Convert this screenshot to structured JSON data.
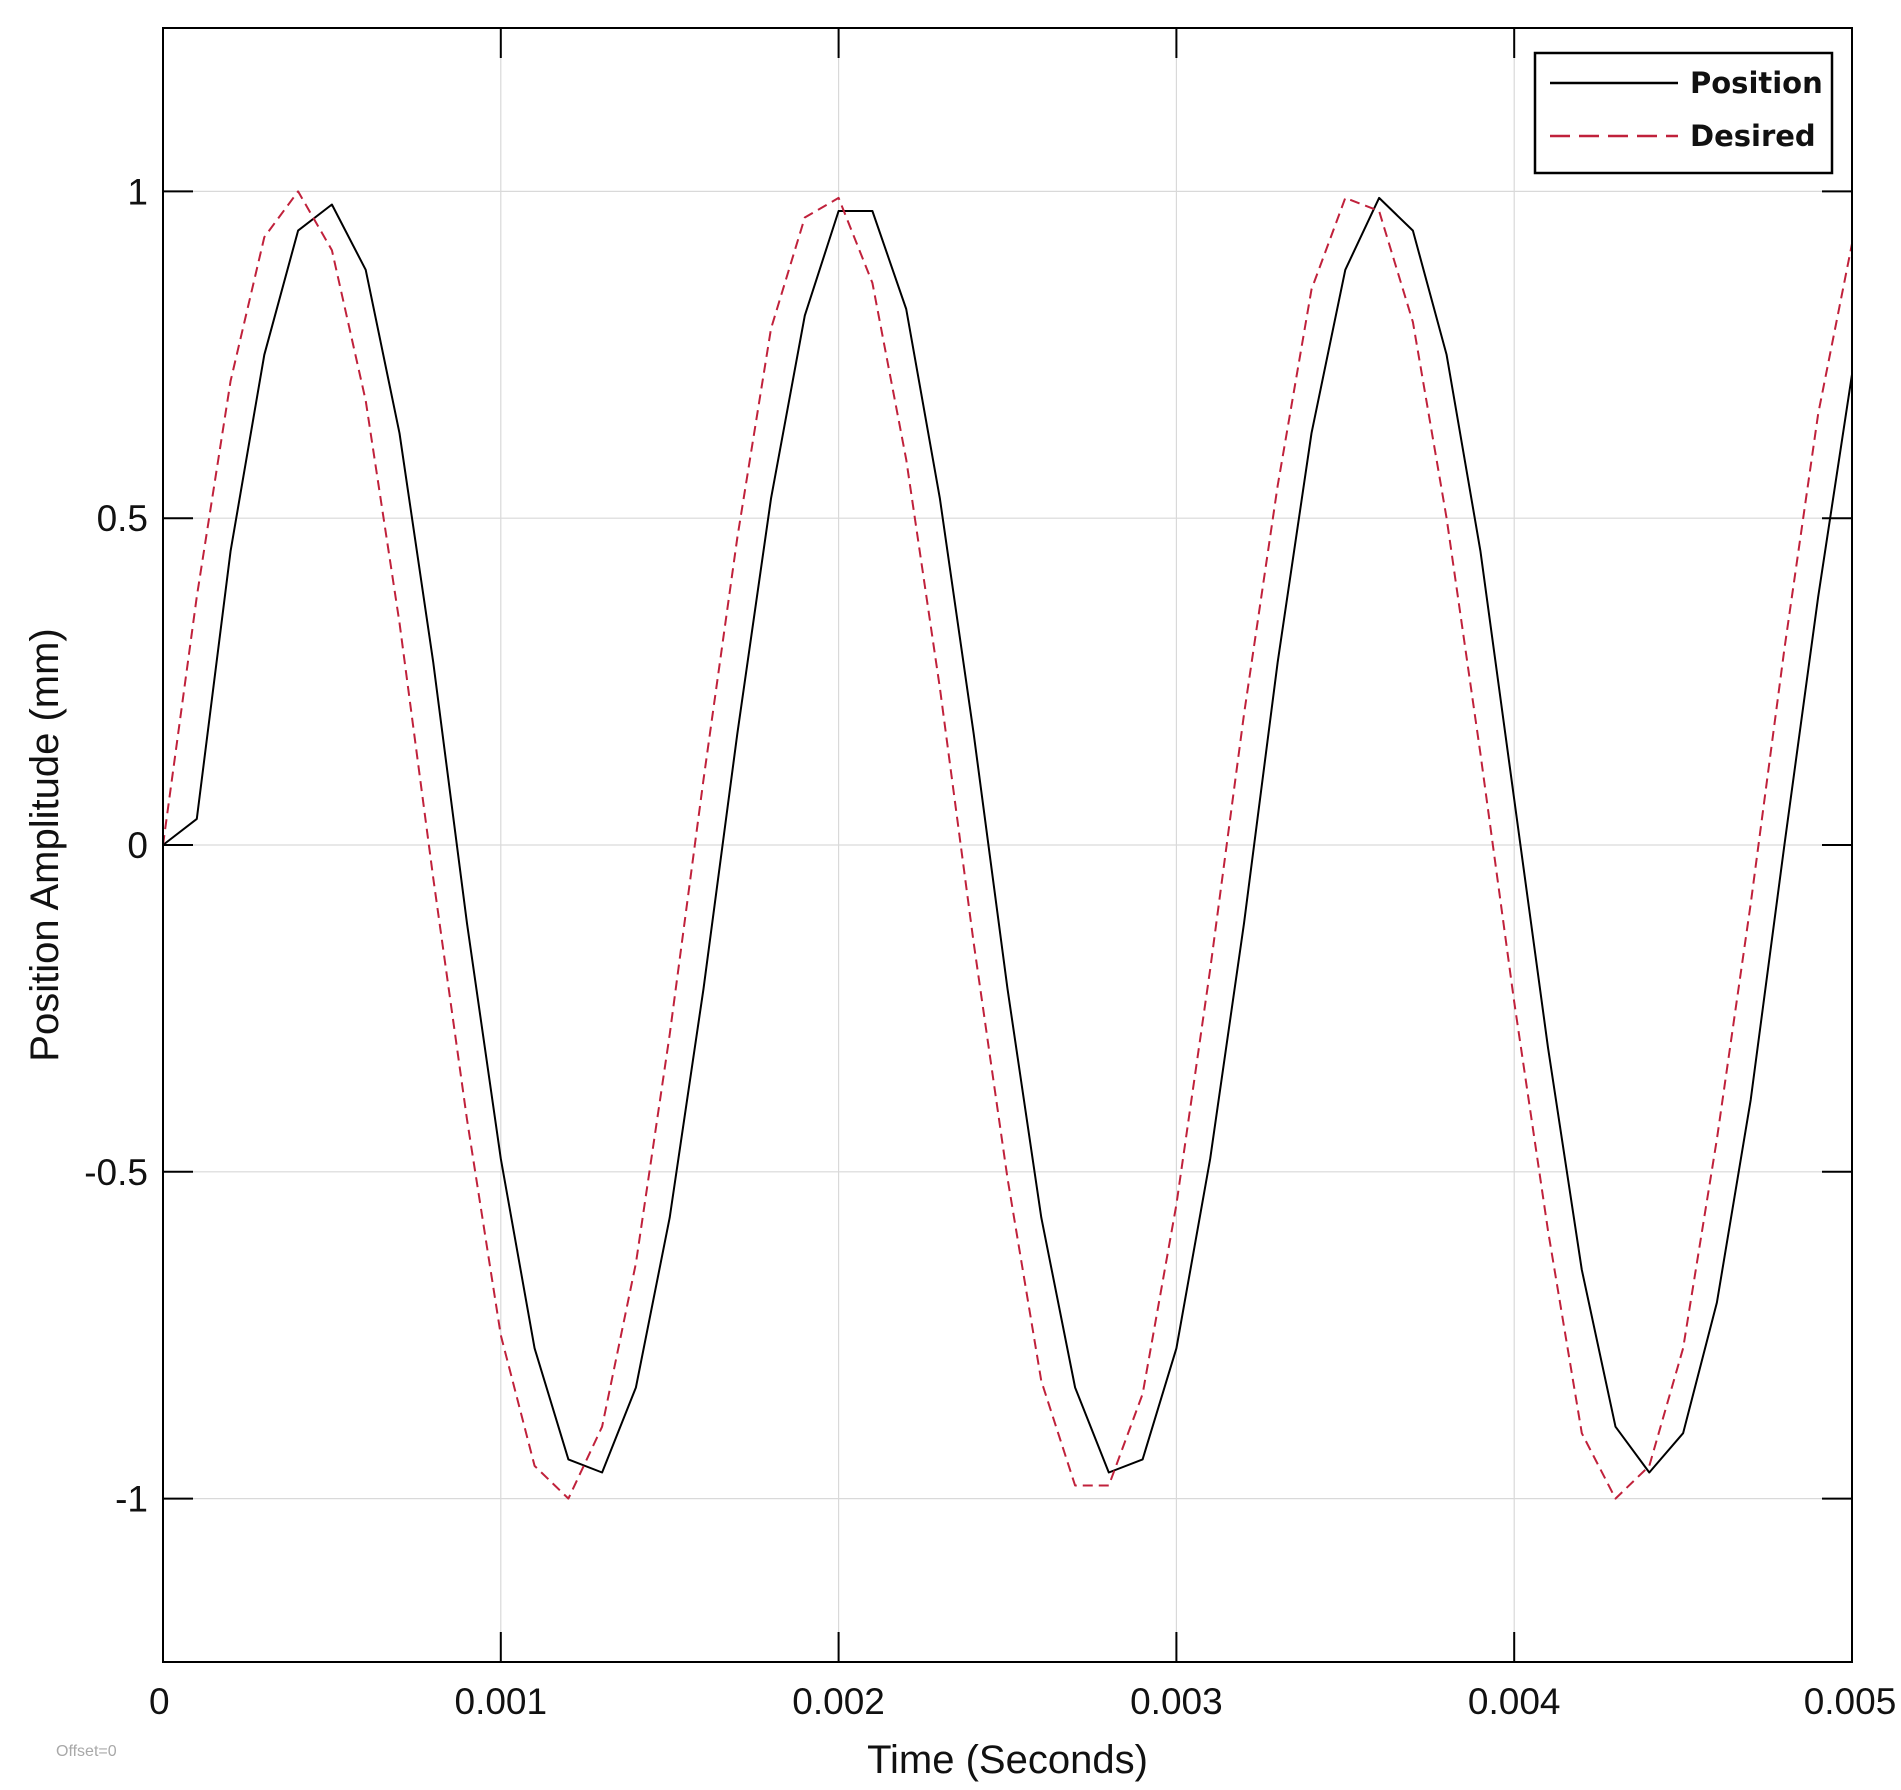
{
  "chart_data": {
    "type": "line",
    "title": "",
    "xlabel": "Time (Seconds)",
    "ylabel": "Position Amplitude (mm)",
    "xlim": [
      0,
      0.005
    ],
    "ylim": [
      -1.25,
      1.25
    ],
    "x_ticks": [
      0,
      0.001,
      0.002,
      0.003,
      0.004,
      0.005
    ],
    "x_tick_labels": [
      "0",
      "0.001",
      "0.002",
      "0.003",
      "0.004",
      "0.005"
    ],
    "y_ticks": [
      1,
      0.5,
      0,
      -0.5,
      -1
    ],
    "y_tick_labels": [
      "1",
      "0.5",
      "0",
      "-0.5",
      "-1"
    ],
    "grid": true,
    "legend_position": "top-right",
    "annotation": "Offset=0",
    "x": [
      0,
      0.0001,
      0.0002,
      0.0003,
      0.0004,
      0.0005,
      0.0006,
      0.0007,
      0.0008,
      0.0009,
      0.001,
      0.0011,
      0.0012,
      0.0013,
      0.0014,
      0.0015,
      0.0016,
      0.0017,
      0.0018,
      0.0019,
      0.002,
      0.0021,
      0.0022,
      0.0023,
      0.0024,
      0.0025,
      0.0026,
      0.0027,
      0.0028,
      0.0029,
      0.003,
      0.0031,
      0.0032,
      0.0033,
      0.0034,
      0.0035,
      0.0036,
      0.0037,
      0.0038,
      0.0039,
      0.004,
      0.0041,
      0.0042,
      0.0043,
      0.0044,
      0.0045,
      0.0046,
      0.0047,
      0.0048,
      0.0049,
      0.005
    ],
    "series": [
      {
        "name": "Position",
        "color": "#000000",
        "dash": "solid",
        "values": [
          0,
          0.04,
          0.45,
          0.75,
          0.94,
          0.98,
          0.88,
          0.63,
          0.28,
          -0.12,
          -0.48,
          -0.77,
          -0.94,
          -0.96,
          -0.83,
          -0.57,
          -0.22,
          0.17,
          0.53,
          0.81,
          0.97,
          0.97,
          0.82,
          0.53,
          0.17,
          -0.22,
          -0.57,
          -0.83,
          -0.96,
          -0.94,
          -0.77,
          -0.48,
          -0.12,
          0.28,
          0.63,
          0.88,
          0.99,
          0.94,
          0.75,
          0.45,
          0.07,
          -0.31,
          -0.65,
          -0.89,
          -0.96,
          -0.9,
          -0.7,
          -0.39,
          0.0,
          0.38,
          0.72
        ]
      },
      {
        "name": "Desired",
        "color": "#c0213b",
        "dash": "dashed",
        "values": [
          0,
          0.38,
          0.71,
          0.93,
          1.0,
          0.91,
          0.68,
          0.34,
          -0.05,
          -0.42,
          -0.75,
          -0.95,
          -1.0,
          -0.89,
          -0.64,
          -0.29,
          0.1,
          0.47,
          0.79,
          0.96,
          0.99,
          0.86,
          0.59,
          0.24,
          -0.15,
          -0.51,
          -0.82,
          -0.98,
          -0.98,
          -0.84,
          -0.55,
          -0.19,
          0.2,
          0.55,
          0.85,
          0.99,
          0.97,
          0.8,
          0.5,
          0.14,
          -0.24,
          -0.59,
          -0.9,
          -1.0,
          -0.95,
          -0.77,
          -0.45,
          -0.09,
          0.3,
          0.66,
          0.92
        ]
      }
    ]
  }
}
